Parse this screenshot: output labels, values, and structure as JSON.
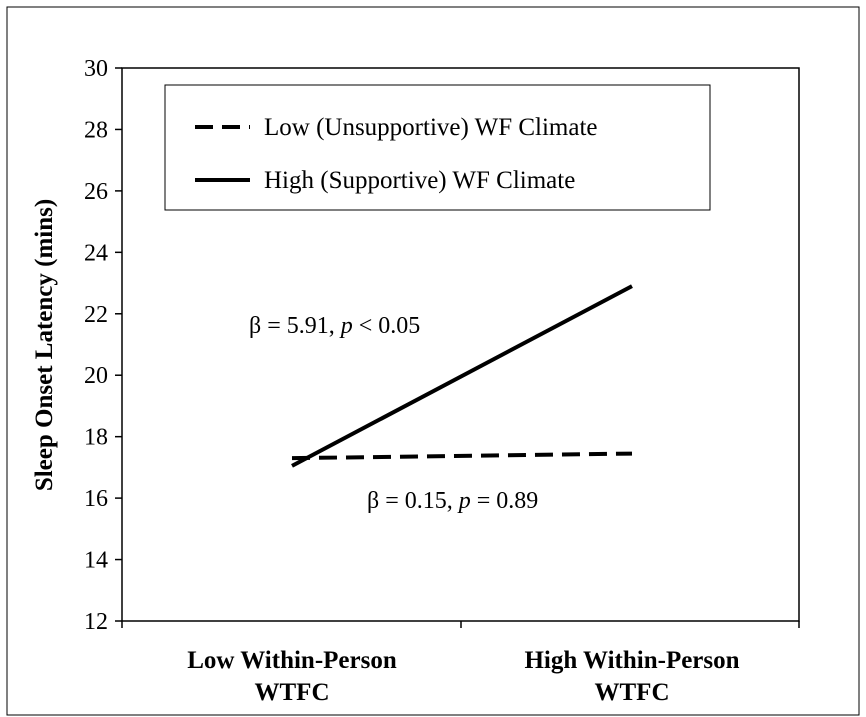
{
  "chart_data": {
    "type": "line",
    "title": "",
    "ylabel": "Sleep Onset Latency (mins)",
    "xlabel": "",
    "ylim": [
      12,
      30
    ],
    "yticks": [
      "12",
      "14",
      "16",
      "18",
      "20",
      "22",
      "24",
      "26",
      "28",
      "30"
    ],
    "categories": [
      [
        "Low Within-Person",
        "WTFC"
      ],
      [
        "High Within-Person",
        "WTFC"
      ]
    ],
    "grid": false,
    "legend_position": "top",
    "series": [
      {
        "name": "Low (Unsupportive) WF Climate",
        "style": "dashed",
        "color": "#000000",
        "values": [
          17.3,
          17.45
        ]
      },
      {
        "name": "High (Supportive) WF Climate",
        "style": "solid",
        "color": "#000000",
        "values": [
          17.05,
          22.9
        ]
      }
    ],
    "annotations": [
      {
        "series": "High (Supportive) WF Climate",
        "text": [
          "β = 5.91, ",
          "p",
          " < 0.05"
        ]
      },
      {
        "series": "Low (Unsupportive) WF Climate",
        "text": [
          "β = 0.15,  ",
          "p",
          " = 0.89"
        ]
      }
    ]
  }
}
